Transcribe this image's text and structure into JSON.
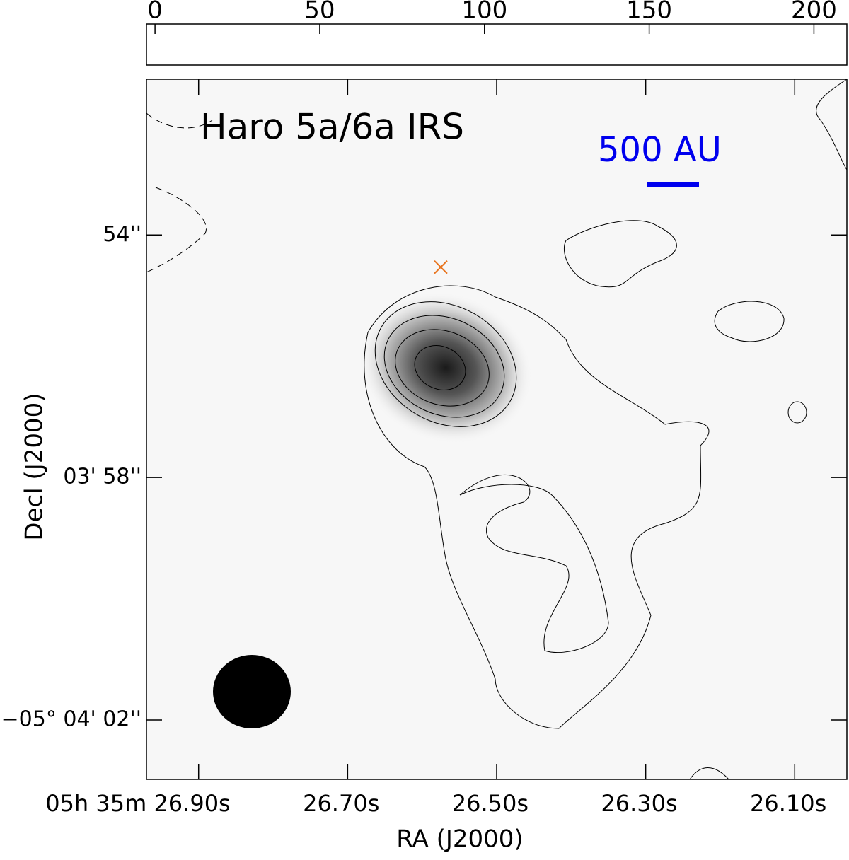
{
  "chart_data": {
    "type": "image",
    "title": "Haro 5a/6a IRS",
    "scale_bar_label": "500 AU",
    "xlabel": "RA (J2000)",
    "ylabel": "Decl (J2000)",
    "xlim": [
      26.97,
      26.03
    ],
    "ylim": [
      51.43,
      62.98
    ],
    "xticks": [
      {
        "value": 26.9,
        "label": "05h 35m 26.90s"
      },
      {
        "value": 26.7,
        "label": "26.70s"
      },
      {
        "value": 26.5,
        "label": "26.50s"
      },
      {
        "value": 26.3,
        "label": "26.30s"
      },
      {
        "value": 26.1,
        "label": "26.10s"
      }
    ],
    "yticks": [
      {
        "value": 54,
        "label": "54''"
      },
      {
        "value": 58,
        "label": "03' 58''"
      },
      {
        "value": 62,
        "label": "−05° 04' 02''"
      }
    ],
    "colorbar": {
      "lim": [
        -2.6,
        210
      ],
      "ticks": [
        0,
        50,
        100,
        150,
        200
      ]
    },
    "source": {
      "x": 26.575,
      "y": 54.53,
      "color": "#e8741e"
    }
  }
}
